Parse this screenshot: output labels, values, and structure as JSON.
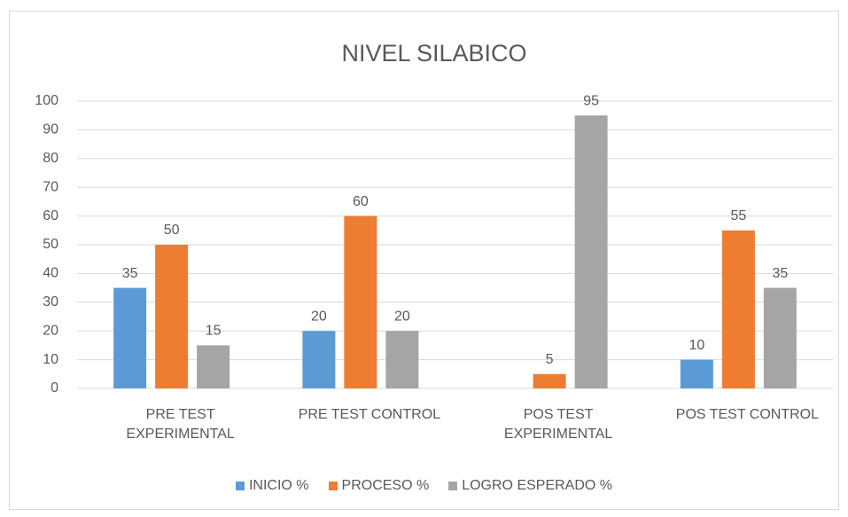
{
  "chart_data": {
    "type": "bar",
    "title": "NIVEL SILABICO",
    "categories": [
      "PRE TEST EXPERIMENTAL",
      "PRE TEST CONTROL",
      "POS TEST EXPERIMENTAL",
      "POS TEST CONTROL"
    ],
    "series": [
      {
        "name": "INICIO %",
        "color": "#5b9bd5",
        "values": [
          35,
          20,
          null,
          10
        ]
      },
      {
        "name": "PROCESO %",
        "color": "#ed7d31",
        "values": [
          50,
          60,
          5,
          55
        ]
      },
      {
        "name": "LOGRO ESPERADO %",
        "color": "#a5a5a5",
        "values": [
          15,
          20,
          95,
          35
        ]
      }
    ],
    "ylim": [
      0,
      100
    ],
    "yticks": [
      0,
      10,
      20,
      30,
      40,
      50,
      60,
      70,
      80,
      90,
      100
    ],
    "grid": true,
    "legend": "bottom"
  }
}
